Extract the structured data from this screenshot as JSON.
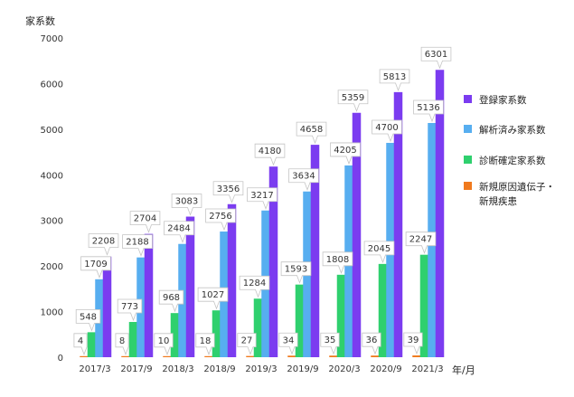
{
  "chart_data": {
    "type": "bar",
    "title": "",
    "ylabel": "家系数",
    "xlabel": "年/月",
    "ylim": [
      0,
      7000
    ],
    "yticks": [
      0,
      1000,
      2000,
      3000,
      4000,
      5000,
      6000,
      7000
    ],
    "categories": [
      "2017/3",
      "2017/9",
      "2018/3",
      "2018/9",
      "2019/3",
      "2019/9",
      "2020/3",
      "2020/9",
      "2021/3"
    ],
    "legend_position": "right",
    "grid": false,
    "series": [
      {
        "name": "新規原因遺伝子・新規疾患",
        "legend_lines": [
          "新規原因遺伝子・",
          "新規疾患"
        ],
        "color": "#f07a1e",
        "values": [
          4,
          8,
          10,
          18,
          27,
          34,
          35,
          36,
          39
        ]
      },
      {
        "name": "診断確定家系数",
        "legend_lines": [
          "診断確定家系数"
        ],
        "color": "#2fd06e",
        "values": [
          548,
          773,
          968,
          1027,
          1284,
          1593,
          1808,
          2045,
          2247
        ]
      },
      {
        "name": "解析済み家系数",
        "legend_lines": [
          "解析済み家系数"
        ],
        "color": "#57aef0",
        "values": [
          1709,
          2188,
          2484,
          2756,
          3217,
          3634,
          4205,
          4700,
          5136
        ]
      },
      {
        "name": "登録家系数",
        "legend_lines": [
          "登録家系数"
        ],
        "color": "#7b3cf0",
        "values": [
          2208,
          2704,
          3083,
          3356,
          4180,
          4658,
          5359,
          5813,
          6301
        ]
      }
    ],
    "legend_order": [
      3,
      2,
      1,
      0
    ]
  }
}
